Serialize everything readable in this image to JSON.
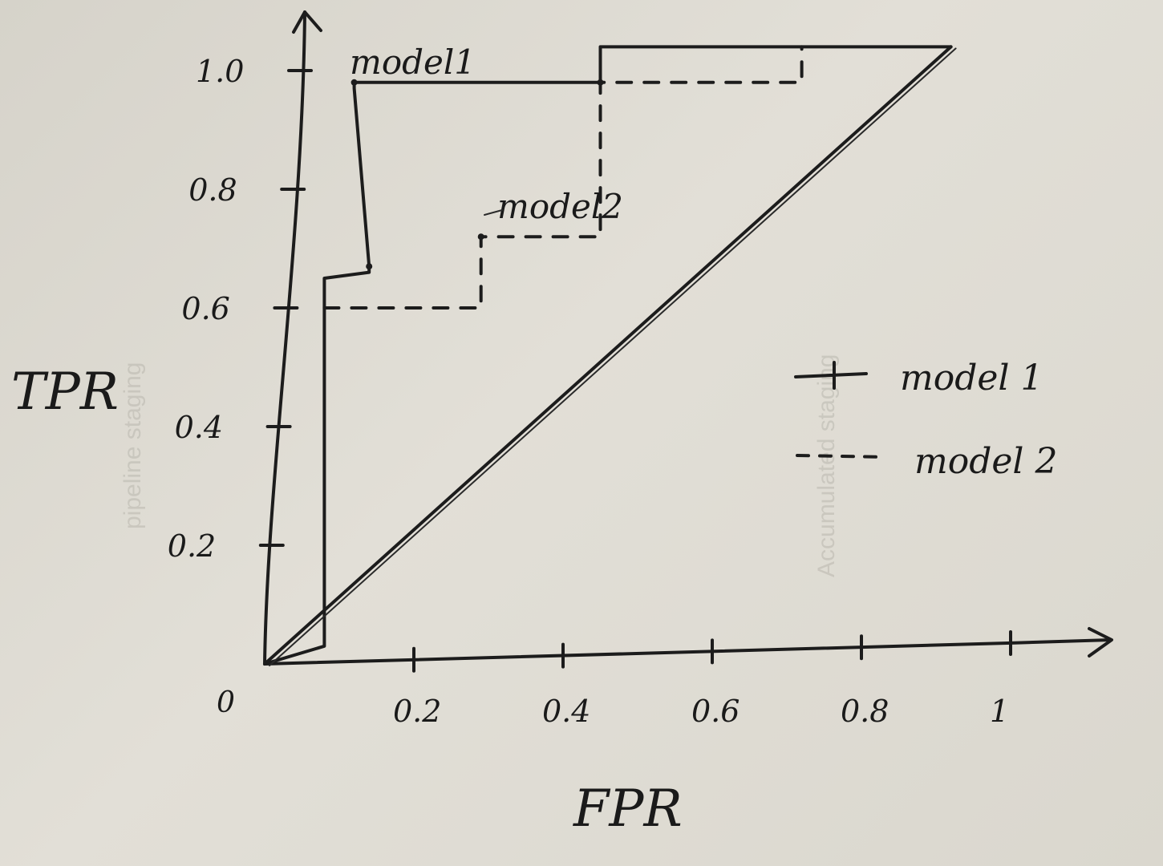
{
  "chart_data": {
    "type": "line",
    "xlabel": "FPR",
    "ylabel": "TPR",
    "origin_label": "0",
    "x_ticks": [
      "0.2",
      "0.4",
      "0.6",
      "0.8",
      "1"
    ],
    "y_ticks": [
      "0.2",
      "0.4",
      "0.6",
      "0.8",
      "1.0"
    ],
    "x_tick_values": [
      0.2,
      0.4,
      0.6,
      0.8,
      1.0
    ],
    "y_tick_values": [
      0.2,
      0.4,
      0.6,
      0.8,
      1.0
    ],
    "xlim": [
      0,
      1.1
    ],
    "ylim": [
      0,
      1.1
    ],
    "series": [
      {
        "name": "model 1",
        "style": "solid",
        "label": "model1",
        "x": [
          0,
          0.08,
          0.08,
          0.14,
          0.14,
          0.12,
          0.12,
          0.45,
          0.45,
          0.92
        ],
        "y": [
          0,
          0.03,
          0.65,
          0.66,
          0.67,
          0.97,
          0.98,
          0.98,
          1.04,
          1.04
        ]
      },
      {
        "name": "model 2",
        "style": "dashed",
        "label": "model2",
        "x": [
          0.08,
          0.29,
          0.29,
          0.45,
          0.45,
          0.72,
          0.72
        ],
        "y": [
          0.6,
          0.6,
          0.72,
          0.72,
          0.98,
          0.98,
          1.04
        ]
      },
      {
        "name": "",
        "style": "diagonal",
        "x": [
          0,
          0.92
        ],
        "y": [
          0,
          1.04
        ]
      }
    ],
    "legend": {
      "placement": "right",
      "entries": [
        {
          "label": "model 1",
          "style": "solid"
        },
        {
          "label": "model 2",
          "style": "dashed"
        }
      ]
    },
    "annotations": [
      "model1",
      "model2"
    ],
    "grid": false
  },
  "colors": {
    "ink": "#1c1c1c",
    "paper": "#dedbd3"
  }
}
